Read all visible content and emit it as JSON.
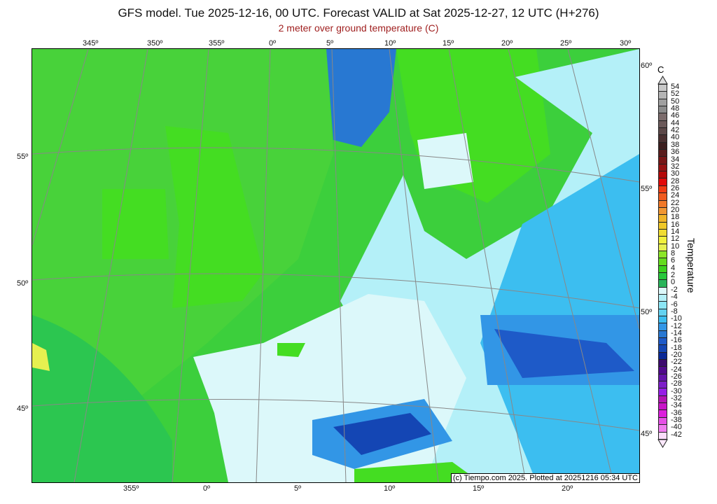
{
  "title": "GFS model. Tue 2025-12-16, 00 UTC. Forecast VALID at Sat 2025-12-27, 12 UTC (H+276)",
  "subtitle": "2 meter over ground temperature (C)",
  "credit": "(c) Tiempo.com 2025. Plotted at 20251216 05:34 UTC",
  "top_lon_labels": [
    "345º",
    "350º",
    "355º",
    "0º",
    "5º",
    "10º",
    "15º",
    "20º",
    "25º",
    "30º"
  ],
  "bottom_lon_labels": [
    "355º",
    "0º",
    "5º",
    "10º",
    "15º",
    "20º"
  ],
  "left_lat_labels": [
    "55º",
    "50º",
    "45º"
  ],
  "right_lat_labels": [
    "60º",
    "55º",
    "50º",
    "45º"
  ],
  "colorbar": {
    "unit": "C",
    "name": "Temperature",
    "levels": [
      54,
      52,
      50,
      48,
      46,
      44,
      42,
      40,
      38,
      36,
      34,
      32,
      30,
      28,
      26,
      24,
      22,
      20,
      18,
      16,
      14,
      12,
      10,
      8,
      6,
      4,
      2,
      0,
      -2,
      -4,
      -6,
      -8,
      -10,
      -12,
      -14,
      -16,
      -18,
      -20,
      -22,
      -24,
      -26,
      -28,
      -30,
      -32,
      -34,
      -36,
      -38,
      -40,
      -42
    ],
    "colors": [
      "#c8c8c8",
      "#b4b4b4",
      "#a0a0a0",
      "#8c8c8c",
      "#7c6c6c",
      "#6c5a5a",
      "#5c4848",
      "#4a3030",
      "#3c1e1e",
      "#5a1e1e",
      "#781818",
      "#961414",
      "#b40a0a",
      "#e10a0a",
      "#f03c14",
      "#f05a1e",
      "#f07828",
      "#f09632",
      "#f0b428",
      "#f0c828",
      "#f0dc32",
      "#f0f03c",
      "#e6f050",
      "#8ce628",
      "#64dc1e",
      "#3cd21e",
      "#28c83c",
      "#28b45a",
      "#dcf8fa",
      "#b4f0f8",
      "#8ce6f5",
      "#64d2f0",
      "#3cbef0",
      "#3296e6",
      "#2878d2",
      "#1e5ac8",
      "#1446b4",
      "#0a2896",
      "#3c0a6e",
      "#500a8c",
      "#6414aa",
      "#7d1ec8",
      "#961ee6",
      "#b414b4",
      "#c814c8",
      "#dc1edc",
      "#e650e6",
      "#f07cf0",
      "#fadcfa"
    ]
  }
}
